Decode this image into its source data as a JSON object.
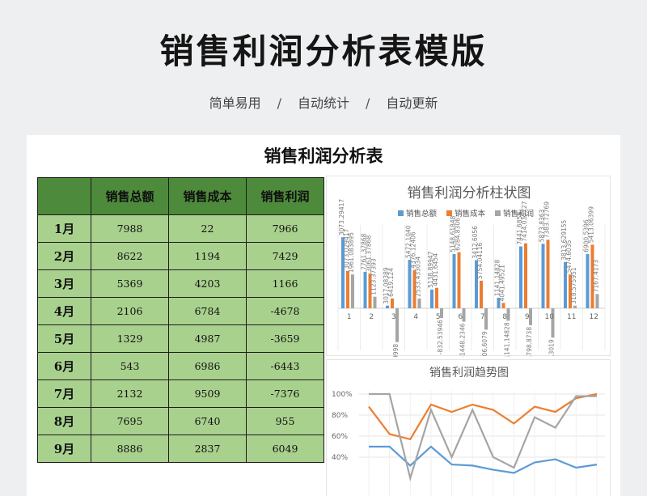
{
  "header": {
    "title": "销售利润分析表模版",
    "features": [
      "简单易用",
      "自动统计",
      "自动更新"
    ],
    "separator": "/"
  },
  "sheet": {
    "title": "销售利润分析表",
    "columns": [
      "",
      "销售总额",
      "销售成本",
      "销售利润"
    ],
    "rows": [
      {
        "month": "1月",
        "sales": "7988",
        "cost": "22",
        "profit": "7966"
      },
      {
        "month": "2月",
        "sales": "8622",
        "cost": "1194",
        "profit": "7429"
      },
      {
        "month": "3月",
        "sales": "5369",
        "cost": "4203",
        "profit": "1166"
      },
      {
        "month": "4月",
        "sales": "2106",
        "cost": "6784",
        "profit": "-4678"
      },
      {
        "month": "5月",
        "sales": "1329",
        "cost": "4987",
        "profit": "-3659"
      },
      {
        "month": "6月",
        "sales": "543",
        "cost": "6986",
        "profit": "-6443"
      },
      {
        "month": "7月",
        "sales": "2132",
        "cost": "9509",
        "profit": "-7376"
      },
      {
        "month": "8月",
        "sales": "7695",
        "cost": "6740",
        "profit": "955"
      },
      {
        "month": "9月",
        "sales": "8886",
        "cost": "2837",
        "profit": "6049"
      }
    ]
  },
  "colors": {
    "sales": "#5b9bd5",
    "cost": "#ed7d31",
    "profit": "#a5a5a5",
    "header_green": "#4e8a3b",
    "cell_green": "#a9d18e"
  },
  "chart_data": [
    {
      "type": "bar",
      "title": "销售利润分析柱状图",
      "categories": [
        "1",
        "2",
        "3",
        "4",
        "5",
        "6",
        "7",
        "8",
        "9",
        "10",
        "11",
        "12"
      ],
      "legend": "top",
      "series": [
        {
          "name": "销售总额",
          "values": [
            7988,
            4100,
            300,
            5450,
            2100,
            6100,
            5400,
            1180,
            6950,
            7250,
            5200,
            6100
          ]
        },
        {
          "name": "销售成本",
          "values": [
            4200,
            3900,
            1100,
            4300,
            2300,
            6300,
            3100,
            600,
            7300,
            7700,
            3800,
            7150
          ]
        },
        {
          "name": "销售利润",
          "values": [
            3800,
            1300,
            -3800,
            1100,
            -1100,
            -1500,
            -2400,
            -1400,
            -1900,
            -3300,
            300,
            1600
          ]
        }
      ],
      "data_labels": [
        "3073.29417",
        "7761.37868",
        "3017.08389",
        "5472.1040",
        "5138.89947",
        "5148.61848",
        "3412.6056",
        "1141.14828",
        "7441.6858",
        "5873.8363",
        "3813.629155",
        "6900.5396",
        "3073.029417",
        "3061.37868",
        "6419.124",
        "4376.12406",
        "4431.6454",
        "6284.8306",
        "5754.04116",
        "4041.49521",
        "7414.035727",
        "7383.72769",
        "5474.6035",
        "5413.06399",
        "1961.083895",
        "1123.37393",
        "1791.99998",
        "2533.433034",
        "-832.53946",
        "-1448.2346",
        "-2206.6079",
        "-1141.14828",
        "-1798.8738",
        "-3034.3019",
        "318.575951",
        "7167.4173"
      ]
    },
    {
      "type": "line",
      "title": "销售利润趋势图",
      "y_ticks": [
        "100%",
        "80%",
        "60%",
        "40%"
      ],
      "series": [
        {
          "name": "销售总额",
          "values": [
            50,
            50,
            32,
            50,
            33,
            32,
            28,
            25,
            35,
            38,
            30,
            33
          ]
        },
        {
          "name": "销售成本",
          "values": [
            88,
            62,
            57,
            90,
            83,
            90,
            85,
            72,
            88,
            83,
            96,
            100
          ]
        },
        {
          "name": "销售利润",
          "values": [
            100,
            100,
            20,
            85,
            40,
            85,
            40,
            30,
            78,
            68,
            98,
            98
          ]
        }
      ]
    }
  ]
}
